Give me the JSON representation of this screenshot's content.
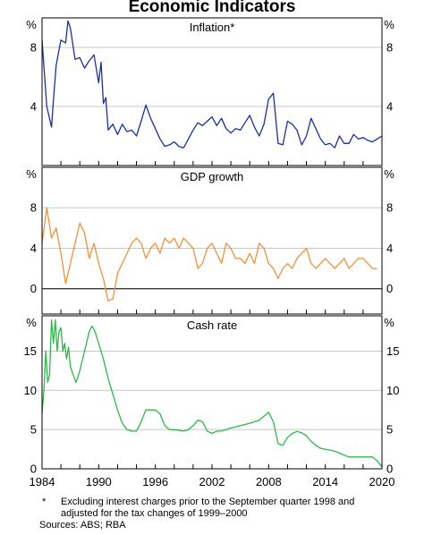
{
  "title": "Economic Indicators",
  "footnote": {
    "marker": "*",
    "line1": "Excluding interest charges prior to the September quarter 1998 and",
    "line2": "adjusted for the tax changes of 1999–2000"
  },
  "sources": "Sources: ABS; RBA",
  "chart_data": [
    {
      "type": "line",
      "title": "Inflation*",
      "unit_label": "%",
      "color": "#1f2f9e",
      "ylim": [
        0,
        10
      ],
      "yticks": [
        8,
        4
      ],
      "xlim": [
        1984,
        2020
      ],
      "x_tick_labels": [
        "1984",
        "1990",
        "1996",
        "2002",
        "2008",
        "2014",
        "2020"
      ],
      "series": [
        {
          "x": [
            1984.0,
            1984.5,
            1985.0,
            1985.25,
            1985.5,
            1986.0,
            1986.5,
            1986.75,
            1987.0,
            1987.5,
            1988.0,
            1988.5,
            1989.0,
            1989.5,
            1990.0,
            1990.25,
            1990.5,
            1990.75,
            1991.0,
            1991.5,
            1992.0,
            1992.5,
            1993.0,
            1993.5,
            1994.0,
            1994.5,
            1995.0,
            1995.5,
            1996.0,
            1996.5,
            1997.0,
            1997.5,
            1998.0,
            1998.5,
            1999.0,
            1999.5,
            2000.0,
            2000.5,
            2001.0,
            2001.5,
            2002.0,
            2002.5,
            2003.0,
            2003.5,
            2004.0,
            2004.5,
            2005.0,
            2005.5,
            2006.0,
            2006.5,
            2007.0,
            2007.5,
            2008.0,
            2008.5,
            2009.0,
            2009.5,
            2010.0,
            2010.5,
            2011.0,
            2011.5,
            2012.0,
            2012.5,
            2013.0,
            2013.5,
            2014.0,
            2014.5,
            2015.0,
            2015.5,
            2016.0,
            2016.5,
            2017.0,
            2017.5,
            2018.0,
            2018.5,
            2019.0,
            2019.5,
            2020.0
          ],
          "values": [
            8.5,
            4.0,
            2.6,
            4.8,
            6.8,
            8.5,
            8.3,
            9.8,
            9.3,
            7.2,
            7.3,
            6.6,
            7.1,
            7.5,
            5.6,
            7.0,
            4.2,
            4.6,
            2.4,
            2.8,
            2.1,
            2.8,
            2.3,
            2.4,
            2.0,
            3.0,
            4.1,
            3.2,
            2.5,
            1.8,
            1.3,
            1.4,
            1.6,
            1.3,
            1.2,
            1.8,
            2.4,
            2.9,
            2.7,
            3.0,
            3.3,
            2.7,
            3.2,
            2.5,
            2.2,
            2.5,
            2.4,
            2.9,
            3.4,
            2.6,
            2.0,
            2.8,
            4.5,
            4.9,
            1.5,
            1.4,
            3.0,
            2.8,
            2.4,
            1.4,
            2.0,
            3.2,
            2.5,
            1.8,
            1.4,
            1.5,
            1.2,
            2.0,
            1.5,
            1.5,
            2.1,
            1.8,
            1.9,
            1.7,
            1.6,
            1.8,
            2.0
          ]
        }
      ]
    },
    {
      "type": "line",
      "title": "GDP growth",
      "unit_label": "%",
      "color": "#f0913a",
      "ylim": [
        -2.5,
        12
      ],
      "yticks": [
        8,
        4,
        0
      ],
      "xlim": [
        1984,
        2020
      ],
      "x_tick_labels": [
        "1984",
        "1990",
        "1996",
        "2002",
        "2008",
        "2014",
        "2020"
      ],
      "series": [
        {
          "x": [
            1984.0,
            1984.5,
            1985.0,
            1985.5,
            1986.0,
            1986.5,
            1987.0,
            1987.5,
            1988.0,
            1988.5,
            1989.0,
            1989.5,
            1990.0,
            1990.5,
            1991.0,
            1991.5,
            1992.0,
            1992.5,
            1993.0,
            1993.5,
            1994.0,
            1994.5,
            1995.0,
            1995.5,
            1996.0,
            1996.5,
            1997.0,
            1997.5,
            1998.0,
            1998.5,
            1999.0,
            1999.5,
            2000.0,
            2000.5,
            2001.0,
            2001.5,
            2002.0,
            2002.5,
            2003.0,
            2003.5,
            2004.0,
            2004.5,
            2005.0,
            2005.5,
            2006.0,
            2006.5,
            2007.0,
            2007.5,
            2008.0,
            2008.5,
            2009.0,
            2009.5,
            2010.0,
            2010.5,
            2011.0,
            2011.5,
            2012.0,
            2012.5,
            2013.0,
            2013.5,
            2014.0,
            2014.5,
            2015.0,
            2015.5,
            2016.0,
            2016.5,
            2017.0,
            2017.5,
            2018.0,
            2018.5,
            2019.0,
            2019.5
          ],
          "values": [
            4.5,
            8.0,
            5.0,
            6.0,
            3.5,
            0.5,
            2.5,
            4.5,
            6.5,
            5.5,
            3.0,
            4.5,
            2.5,
            1.0,
            -1.2,
            -1.0,
            1.5,
            2.5,
            3.5,
            4.5,
            5.0,
            4.5,
            3.0,
            4.0,
            4.5,
            3.5,
            5.0,
            4.5,
            5.0,
            4.0,
            5.0,
            4.5,
            4.0,
            2.0,
            2.5,
            4.0,
            4.5,
            3.5,
            2.5,
            4.5,
            4.0,
            3.0,
            3.0,
            2.5,
            3.5,
            2.5,
            4.5,
            4.0,
            2.5,
            2.0,
            1.0,
            2.0,
            2.5,
            2.0,
            3.0,
            3.5,
            4.0,
            2.5,
            2.0,
            2.5,
            3.0,
            2.5,
            2.0,
            2.5,
            3.0,
            2.0,
            2.5,
            3.0,
            3.0,
            2.5,
            2.0,
            2.0
          ]
        }
      ]
    },
    {
      "type": "line",
      "title": "Cash rate",
      "unit_label": "%",
      "color": "#2eb84b",
      "ylim": [
        0,
        19.5
      ],
      "yticks": [
        15,
        10,
        5,
        0
      ],
      "xlim": [
        1984,
        2020
      ],
      "x_tick_labels": [
        "1984",
        "1990",
        "1996",
        "2002",
        "2008",
        "2014",
        "2020"
      ],
      "series": [
        {
          "x": [
            1984.0,
            1984.2,
            1984.4,
            1984.6,
            1984.8,
            1985.0,
            1985.2,
            1985.4,
            1985.6,
            1985.8,
            1986.0,
            1986.2,
            1986.4,
            1986.6,
            1986.8,
            1987.0,
            1987.3,
            1987.6,
            1988.0,
            1988.5,
            1989.0,
            1989.3,
            1989.6,
            1990.0,
            1990.5,
            1991.0,
            1991.5,
            1992.0,
            1992.5,
            1993.0,
            1993.5,
            1994.0,
            1994.5,
            1995.0,
            1996.0,
            1996.5,
            1997.0,
            1997.5,
            1998.0,
            1999.0,
            1999.5,
            2000.0,
            2000.5,
            2001.0,
            2001.5,
            2002.0,
            2002.5,
            2003.0,
            2004.0,
            2005.0,
            2006.0,
            2007.0,
            2007.5,
            2008.0,
            2008.5,
            2009.0,
            2009.5,
            2010.0,
            2010.5,
            2011.0,
            2011.5,
            2012.0,
            2012.5,
            2013.0,
            2013.5,
            2014.0,
            2015.0,
            2015.5,
            2016.0,
            2016.5,
            2017.0,
            2018.0,
            2019.0,
            2019.5,
            2020.0
          ],
          "values": [
            7.0,
            10.0,
            15.0,
            11.0,
            12.0,
            19.0,
            16.0,
            19.0,
            15.0,
            17.5,
            18.0,
            15.0,
            16.0,
            14.0,
            15.5,
            13.0,
            12.0,
            11.0,
            12.5,
            15.0,
            17.5,
            18.2,
            17.5,
            16.0,
            14.0,
            11.5,
            9.5,
            7.5,
            5.8,
            5.0,
            4.8,
            4.8,
            6.0,
            7.5,
            7.5,
            7.0,
            5.5,
            5.0,
            5.0,
            4.8,
            5.0,
            5.5,
            6.2,
            6.0,
            4.8,
            4.5,
            4.8,
            4.8,
            5.2,
            5.5,
            5.8,
            6.2,
            6.7,
            7.2,
            6.0,
            3.2,
            3.0,
            4.0,
            4.5,
            4.75,
            4.6,
            4.2,
            3.5,
            3.0,
            2.6,
            2.5,
            2.25,
            2.0,
            1.75,
            1.5,
            1.5,
            1.5,
            1.5,
            1.0,
            0.25
          ]
        }
      ]
    }
  ]
}
